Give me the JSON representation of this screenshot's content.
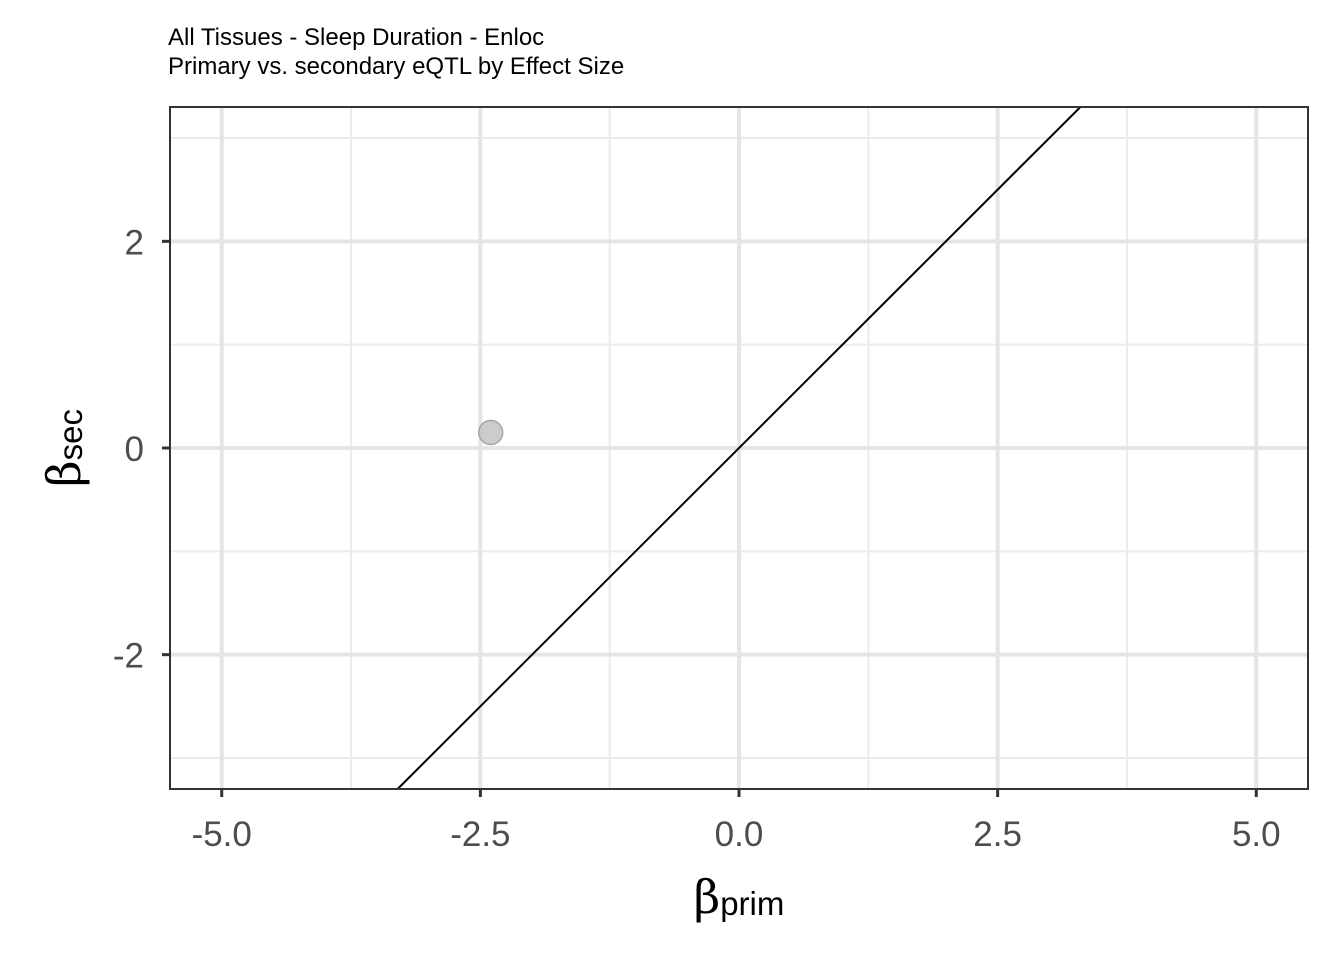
{
  "chart_data": {
    "type": "scatter",
    "title": "All Tissues - Sleep Duration - Enloc",
    "subtitle": "Primary vs. secondary eQTL by Effect Size",
    "xlabel": {
      "symbol": "β",
      "subscript": "prim"
    },
    "ylabel": {
      "symbol": "β",
      "subscript": "sec"
    },
    "xlim": [
      -5.5,
      5.5
    ],
    "ylim": [
      -3.3,
      3.3
    ],
    "x_ticks": [
      -5.0,
      -2.5,
      0.0,
      2.5,
      5.0
    ],
    "x_tick_labels": [
      "-5.0",
      "-2.5",
      "0.0",
      "2.5",
      "5.0"
    ],
    "y_ticks": [
      -2,
      0,
      2
    ],
    "y_tick_labels": [
      "-2",
      "0",
      "2"
    ],
    "x_minor": [
      -3.75,
      -1.25,
      1.25,
      3.75
    ],
    "y_minor": [
      -3,
      -1,
      1,
      3
    ],
    "grid": true,
    "points": [
      {
        "x": -2.4,
        "y": 0.15
      }
    ],
    "point_color": "#bfbfbf",
    "reference_line": {
      "slope": 1,
      "intercept": 0,
      "color": "#000000"
    }
  }
}
